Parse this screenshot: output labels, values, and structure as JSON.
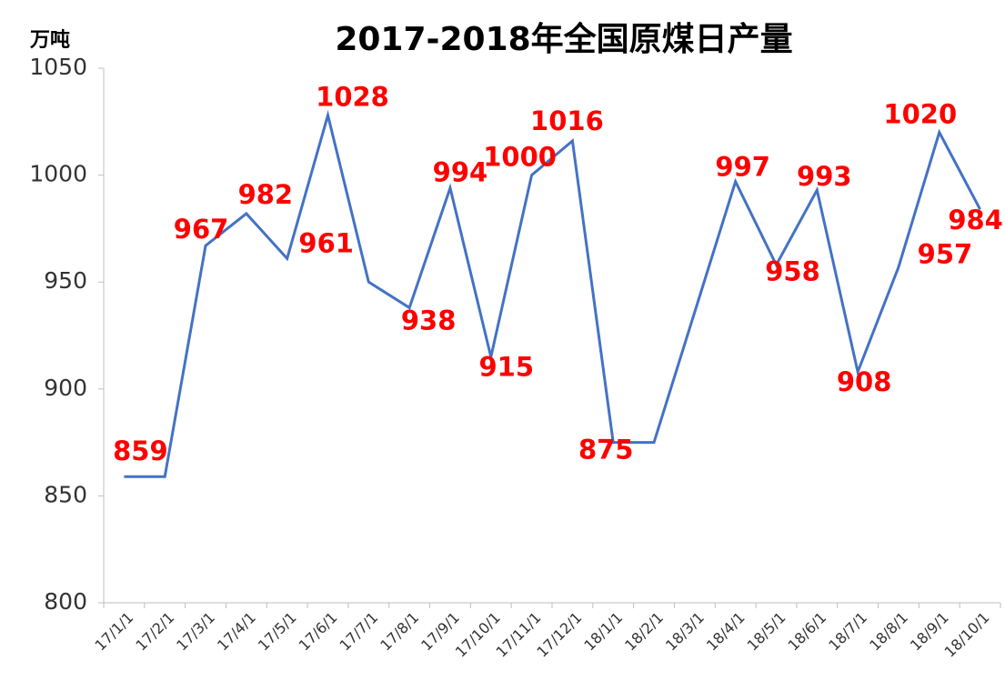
{
  "chart_data": {
    "type": "line",
    "title": "2017-2018年全国原煤日产量",
    "y_label": "万吨",
    "categories": [
      "17/1/1",
      "17/2/1",
      "17/3/1",
      "17/4/1",
      "17/5/1",
      "17/6/1",
      "17/7/1",
      "17/8/1",
      "17/9/1",
      "17/10/1",
      "17/11/1",
      "17/12/1",
      "18/1/1",
      "18/2/1",
      "18/3/1",
      "18/4/1",
      "18/5/1",
      "18/6/1",
      "18/7/1",
      "18/8/1",
      "18/9/1",
      "18/10/1"
    ],
    "series": [
      {
        "name": "原煤日产量",
        "color": "#4472c4",
        "values": [
          859,
          859,
          967,
          982,
          961,
          1028,
          950,
          938,
          994,
          915,
          1000,
          1016,
          875,
          875,
          936,
          997,
          958,
          993,
          908,
          957,
          1020,
          984
        ],
        "value_labels": [
          "859",
          null,
          "967",
          "982",
          "961",
          "1028",
          null,
          "938",
          "994",
          "915",
          "1000",
          "1016",
          "875",
          null,
          null,
          "997",
          "958",
          "993",
          "908",
          "957",
          "1020",
          "984"
        ],
        "label_color": "#ff0000"
      }
    ],
    "ylim": [
      800,
      1050
    ],
    "yticks": [
      800,
      850,
      900,
      950,
      1000,
      1050
    ],
    "grid": false,
    "legend": false
  }
}
